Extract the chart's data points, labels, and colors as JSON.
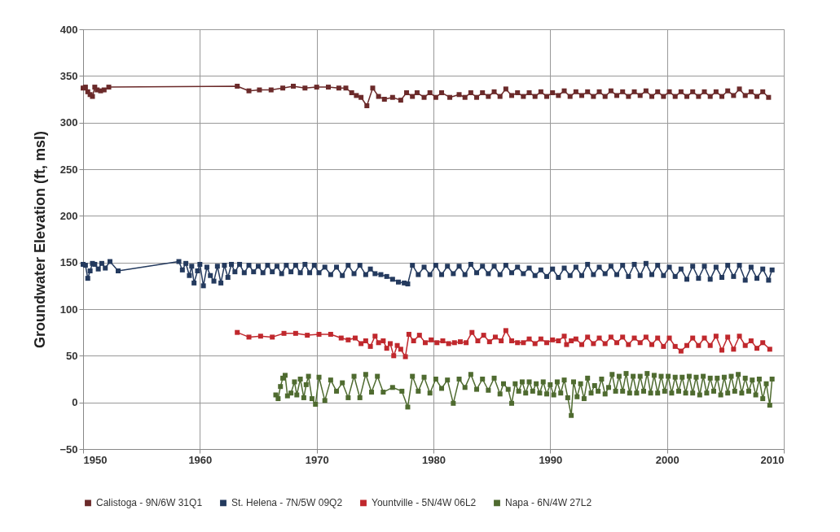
{
  "chart_data": {
    "type": "line",
    "ylabel": "Groundwater Elevation (ft, msl)",
    "xlim": [
      1950,
      2010
    ],
    "xticks": [
      1950,
      1960,
      1970,
      1980,
      1990,
      2000,
      2010
    ],
    "ylim": [
      -50,
      400
    ],
    "yticks": [
      -50,
      0,
      50,
      100,
      150,
      200,
      250,
      300,
      350,
      400
    ],
    "grid": true,
    "legend": "bottom",
    "marker": "square",
    "line_style": "solid",
    "series": [
      {
        "name": "Calistoga - 9N/6W 31Q1",
        "color": "#6b2a2a",
        "x": [
          1950.0,
          1950.2,
          1950.4,
          1950.6,
          1950.8,
          1951.0,
          1951.2,
          1951.5,
          1951.8,
          1952.2,
          1963.2,
          1964.2,
          1965.1,
          1966.1,
          1967.1,
          1968.0,
          1969.0,
          1970.0,
          1971.0,
          1971.9,
          1972.5,
          1973.0,
          1973.4,
          1973.8,
          1974.3,
          1974.8,
          1975.3,
          1975.8,
          1976.5,
          1977.2,
          1977.7,
          1978.2,
          1978.6,
          1979.2,
          1979.7,
          1980.2,
          1980.7,
          1981.4,
          1982.2,
          1982.7,
          1983.2,
          1983.7,
          1984.2,
          1984.7,
          1985.2,
          1985.7,
          1986.2,
          1986.7,
          1987.2,
          1987.7,
          1988.2,
          1988.7,
          1989.2,
          1989.7,
          1990.2,
          1990.7,
          1991.2,
          1991.7,
          1992.2,
          1992.7,
          1993.2,
          1993.7,
          1994.2,
          1994.7,
          1995.2,
          1995.7,
          1996.2,
          1996.7,
          1997.2,
          1997.7,
          1998.2,
          1998.7,
          1999.2,
          1999.7,
          2000.2,
          2000.7,
          2001.2,
          2001.7,
          2002.2,
          2002.7,
          2003.2,
          2003.7,
          2004.2,
          2004.7,
          2005.2,
          2005.7,
          2006.2,
          2006.7,
          2007.2,
          2007.7,
          2008.2,
          2008.7
        ],
        "values": [
          337,
          338,
          333,
          330,
          328,
          338,
          335,
          334,
          335,
          338,
          339,
          334,
          335,
          335,
          337,
          339,
          337,
          338,
          338,
          337,
          337,
          332,
          329,
          327,
          318,
          337,
          328,
          325,
          327,
          324,
          332,
          328,
          332,
          327,
          332,
          327,
          332,
          327,
          330,
          327,
          332,
          327,
          332,
          328,
          333,
          328,
          336,
          329,
          332,
          328,
          332,
          328,
          333,
          328,
          332,
          329,
          334,
          328,
          333,
          329,
          333,
          328,
          333,
          328,
          334,
          329,
          333,
          328,
          333,
          329,
          334,
          328,
          333,
          328,
          333,
          328,
          333,
          328,
          333,
          328,
          333,
          328,
          333,
          328,
          334,
          329,
          336,
          329,
          333,
          328,
          333,
          327
        ]
      },
      {
        "name": "St. Helena - 7N/5W 09Q2",
        "color": "#243a5e",
        "x": [
          1950.0,
          1950.2,
          1950.4,
          1950.6,
          1950.8,
          1951.0,
          1951.3,
          1951.6,
          1951.9,
          1952.3,
          1953.0,
          1958.2,
          1958.5,
          1958.8,
          1959.1,
          1959.3,
          1959.5,
          1959.8,
          1960.0,
          1960.3,
          1960.6,
          1960.9,
          1961.2,
          1961.5,
          1961.8,
          1962.1,
          1962.4,
          1962.7,
          1963.0,
          1963.4,
          1963.8,
          1964.2,
          1964.6,
          1965.0,
          1965.4,
          1965.8,
          1966.2,
          1966.6,
          1967.0,
          1967.4,
          1967.8,
          1968.2,
          1968.6,
          1969.0,
          1969.4,
          1969.8,
          1970.2,
          1970.7,
          1971.2,
          1971.7,
          1972.2,
          1972.7,
          1973.2,
          1973.7,
          1974.2,
          1974.6,
          1975.0,
          1975.5,
          1976.0,
          1976.5,
          1977.0,
          1977.5,
          1977.8,
          1978.2,
          1978.7,
          1979.2,
          1979.7,
          1980.2,
          1980.7,
          1981.2,
          1981.7,
          1982.2,
          1982.7,
          1983.2,
          1983.7,
          1984.2,
          1984.7,
          1985.2,
          1985.7,
          1986.2,
          1986.7,
          1987.2,
          1987.7,
          1988.2,
          1988.7,
          1989.2,
          1989.7,
          1990.2,
          1990.7,
          1991.2,
          1991.7,
          1992.2,
          1992.7,
          1993.2,
          1993.7,
          1994.2,
          1994.7,
          1995.2,
          1995.7,
          1996.2,
          1996.7,
          1997.2,
          1997.7,
          1998.2,
          1998.7,
          1999.2,
          1999.7,
          2000.2,
          2000.7,
          2001.2,
          2001.7,
          2002.2,
          2002.7,
          2003.2,
          2003.7,
          2004.2,
          2004.7,
          2005.2,
          2005.7,
          2006.2,
          2006.7,
          2007.2,
          2007.7,
          2008.2,
          2008.7,
          2009.0
        ],
        "values": [
          148,
          147,
          133,
          141,
          149,
          148,
          143,
          149,
          144,
          151,
          141,
          151,
          142,
          149,
          136,
          146,
          128,
          141,
          148,
          125,
          145,
          136,
          130,
          146,
          128,
          147,
          134,
          148,
          140,
          148,
          139,
          147,
          140,
          146,
          139,
          147,
          140,
          146,
          138,
          147,
          140,
          147,
          139,
          148,
          139,
          147,
          139,
          145,
          137,
          145,
          136,
          147,
          138,
          147,
          137,
          143,
          138,
          137,
          135,
          132,
          129,
          128,
          127,
          147,
          137,
          145,
          137,
          147,
          137,
          146,
          138,
          146,
          137,
          148,
          139,
          146,
          138,
          146,
          137,
          147,
          139,
          145,
          138,
          144,
          136,
          142,
          135,
          143,
          134,
          144,
          136,
          145,
          136,
          148,
          137,
          145,
          138,
          146,
          137,
          147,
          135,
          148,
          136,
          149,
          137,
          147,
          136,
          145,
          135,
          143,
          132,
          146,
          133,
          146,
          132,
          145,
          134,
          147,
          135,
          147,
          131,
          145,
          133,
          143,
          131,
          142
        ]
      },
      {
        "name": "Yountville - 5N/4W 06L2",
        "color": "#c0282d",
        "x": [
          1963.2,
          1964.2,
          1965.2,
          1966.2,
          1967.2,
          1968.2,
          1969.2,
          1970.2,
          1971.2,
          1972.1,
          1972.7,
          1973.3,
          1973.8,
          1974.2,
          1974.6,
          1975.0,
          1975.3,
          1975.7,
          1976.0,
          1976.3,
          1976.6,
          1976.9,
          1977.2,
          1977.6,
          1977.9,
          1978.3,
          1978.8,
          1979.3,
          1979.8,
          1980.3,
          1980.8,
          1981.3,
          1981.8,
          1982.3,
          1982.8,
          1983.3,
          1983.8,
          1984.3,
          1984.8,
          1985.3,
          1985.8,
          1986.2,
          1986.7,
          1987.2,
          1987.7,
          1988.2,
          1988.7,
          1989.2,
          1989.7,
          1990.2,
          1990.7,
          1991.2,
          1991.4,
          1991.8,
          1992.2,
          1992.7,
          1993.2,
          1993.7,
          1994.2,
          1994.7,
          1995.2,
          1995.7,
          1996.2,
          1996.7,
          1997.2,
          1997.7,
          1998.2,
          1998.7,
          1999.2,
          1999.7,
          2000.2,
          2000.7,
          2001.2,
          2001.7,
          2002.2,
          2002.7,
          2003.2,
          2003.7,
          2004.2,
          2004.7,
          2005.2,
          2005.7,
          2006.2,
          2006.7,
          2007.2,
          2007.7,
          2008.2,
          2008.8
        ],
        "values": [
          75,
          70,
          71,
          70,
          74,
          74,
          72,
          73,
          73,
          69,
          67,
          69,
          63,
          66,
          60,
          71,
          64,
          66,
          58,
          63,
          50,
          61,
          57,
          49,
          73,
          66,
          72,
          64,
          67,
          64,
          66,
          63,
          64,
          65,
          64,
          75,
          66,
          72,
          65,
          70,
          66,
          77,
          66,
          64,
          64,
          68,
          63,
          68,
          64,
          67,
          66,
          71,
          62,
          66,
          68,
          62,
          70,
          63,
          69,
          63,
          70,
          64,
          70,
          62,
          69,
          64,
          70,
          62,
          69,
          60,
          69,
          60,
          55,
          61,
          69,
          61,
          69,
          61,
          71,
          56,
          70,
          57,
          71,
          61,
          66,
          58,
          64,
          57
        ]
      },
      {
        "name": "Napa - 6N/4W 27L2",
        "color": "#4f6b30",
        "x": [
          1966.5,
          1966.7,
          1966.9,
          1967.1,
          1967.3,
          1967.5,
          1967.8,
          1968.1,
          1968.3,
          1968.6,
          1968.9,
          1969.1,
          1969.3,
          1969.6,
          1969.9,
          1970.2,
          1970.7,
          1971.2,
          1971.7,
          1972.2,
          1972.7,
          1973.2,
          1973.7,
          1974.2,
          1974.7,
          1975.2,
          1975.7,
          1976.5,
          1977.3,
          1977.8,
          1978.2,
          1978.7,
          1979.2,
          1979.7,
          1980.2,
          1980.7,
          1981.2,
          1981.7,
          1982.2,
          1982.7,
          1983.2,
          1983.7,
          1984.2,
          1984.7,
          1985.2,
          1985.7,
          1986.0,
          1986.4,
          1986.7,
          1987.0,
          1987.3,
          1987.6,
          1987.9,
          1988.2,
          1988.5,
          1988.8,
          1989.1,
          1989.4,
          1989.7,
          1990.0,
          1990.3,
          1990.6,
          1990.9,
          1991.2,
          1991.5,
          1991.8,
          1992.0,
          1992.3,
          1992.6,
          1992.9,
          1993.2,
          1993.5,
          1993.8,
          1994.1,
          1994.4,
          1994.7,
          1995.0,
          1995.3,
          1995.6,
          1995.9,
          1996.2,
          1996.5,
          1996.8,
          1997.1,
          1997.4,
          1997.7,
          1998.0,
          1998.3,
          1998.6,
          1998.9,
          1999.2,
          1999.5,
          1999.8,
          2000.1,
          2000.4,
          2000.7,
          2001.0,
          2001.3,
          2001.6,
          2001.9,
          2002.2,
          2002.5,
          2002.8,
          2003.1,
          2003.4,
          2003.7,
          2004.0,
          2004.3,
          2004.6,
          2004.9,
          2005.2,
          2005.5,
          2005.8,
          2006.1,
          2006.4,
          2006.7,
          2007.0,
          2007.3,
          2007.6,
          2007.9,
          2008.2,
          2008.5,
          2008.8,
          2009.0
        ],
        "values": [
          8,
          4,
          17,
          26,
          29,
          7,
          10,
          22,
          8,
          25,
          5,
          19,
          28,
          4,
          -2,
          27,
          2,
          24,
          12,
          21,
          5,
          28,
          5,
          30,
          11,
          28,
          11,
          16,
          12,
          -5,
          28,
          12,
          27,
          10,
          25,
          15,
          24,
          -1,
          25,
          16,
          30,
          14,
          25,
          13,
          26,
          9,
          20,
          14,
          -1,
          20,
          12,
          22,
          10,
          22,
          12,
          20,
          10,
          22,
          9,
          19,
          8,
          22,
          10,
          24,
          5,
          -14,
          22,
          6,
          20,
          4,
          26,
          10,
          18,
          12,
          25,
          9,
          16,
          30,
          12,
          28,
          12,
          31,
          10,
          28,
          10,
          28,
          12,
          31,
          10,
          29,
          10,
          28,
          12,
          28,
          10,
          27,
          12,
          27,
          10,
          28,
          10,
          27,
          8,
          28,
          10,
          26,
          12,
          26,
          8,
          27,
          10,
          28,
          12,
          30,
          10,
          26,
          12,
          24,
          8,
          25,
          4,
          20,
          -3,
          25
        ]
      }
    ]
  }
}
